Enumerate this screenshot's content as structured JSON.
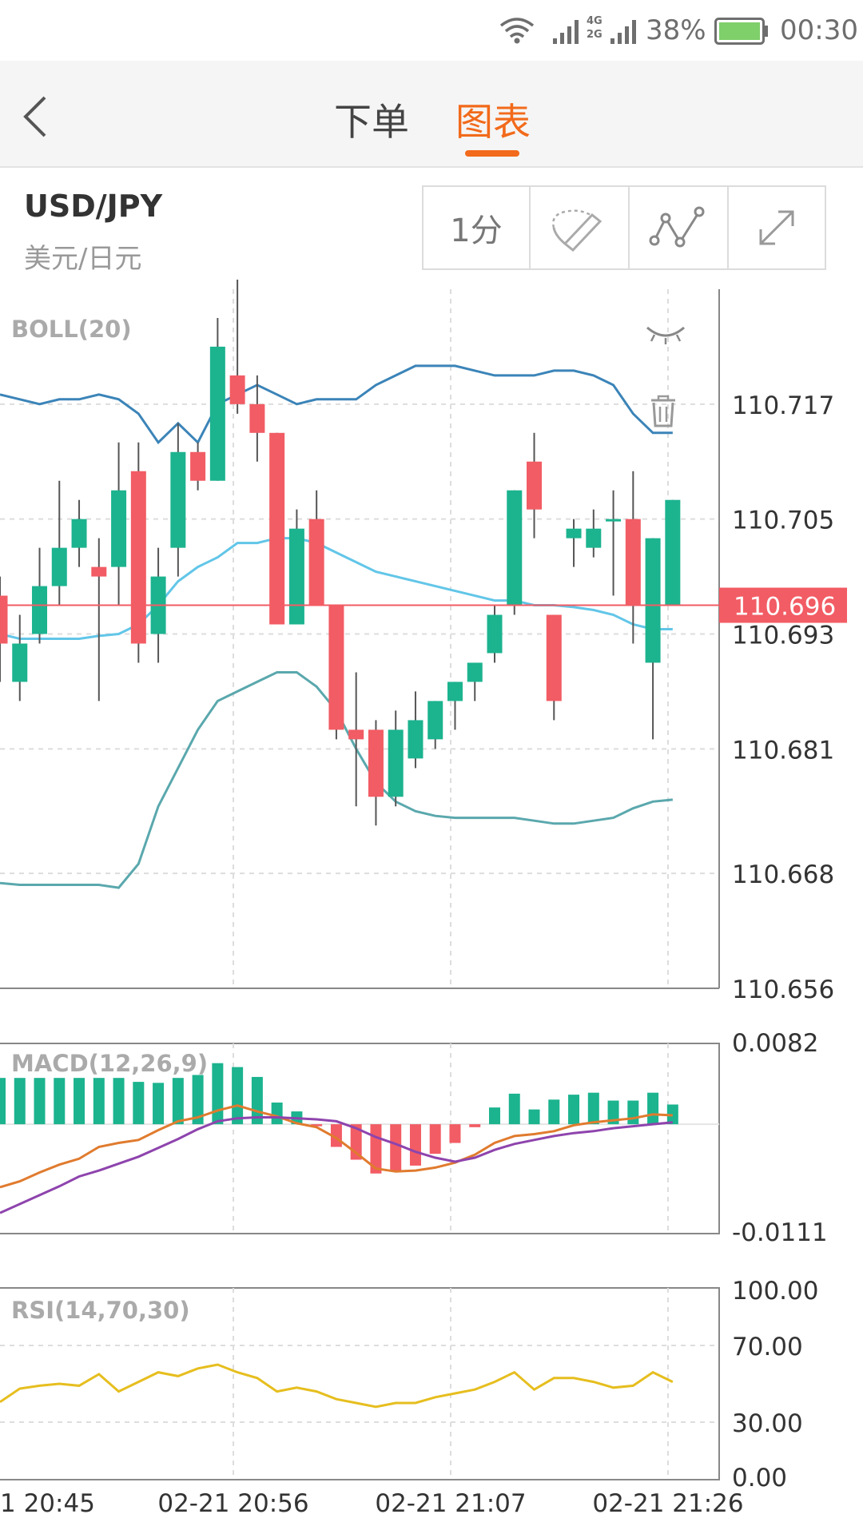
{
  "status_bar": {
    "network": "4G 2G",
    "battery": "38%",
    "time": "00:30"
  },
  "nav": {
    "tabs": [
      {
        "label": "下单",
        "active": false
      },
      {
        "label": "图表",
        "active": true
      }
    ]
  },
  "symbol": {
    "code": "USD/JPY",
    "name": "美元/日元"
  },
  "toolbar": {
    "interval_label": "1分",
    "icons": [
      "draw-pen-icon",
      "line-tool-icon",
      "fullscreen-expand-icon"
    ]
  },
  "colors": {
    "up": "#1cb38f",
    "down": "#f25c64",
    "accent": "#f26a1b",
    "boll_upper": "#3b84b8",
    "boll_mid": "#62c6e8",
    "boll_lower": "#5aa8ad",
    "macd_dif": "#e07b2e",
    "macd_dea": "#8e44ad",
    "rsi": "#e6be1e"
  },
  "chart_data": {
    "type": "candlestick",
    "symbol": "USD/JPY",
    "current_price": "110.696",
    "main": {
      "label": "BOLL(20)",
      "y_ticks": [
        "110.717",
        "110.705",
        "110.693",
        "110.681",
        "110.668",
        "110.656"
      ],
      "ylim": [
        110.656,
        110.729
      ],
      "candles": [
        [
          110.697,
          110.692,
          110.699,
          110.688
        ],
        [
          110.688,
          110.692,
          110.695,
          110.686
        ],
        [
          110.693,
          110.698,
          110.702,
          110.692
        ],
        [
          110.698,
          110.702,
          110.709,
          110.696
        ],
        [
          110.702,
          110.705,
          110.707,
          110.7
        ],
        [
          110.7,
          110.699,
          110.703,
          110.686
        ],
        [
          110.7,
          110.708,
          110.713,
          110.696
        ],
        [
          110.71,
          110.692,
          110.713,
          110.69
        ],
        [
          110.693,
          110.699,
          110.702,
          110.69
        ],
        [
          110.702,
          110.712,
          110.715,
          110.699
        ],
        [
          110.712,
          110.709,
          110.713,
          110.708
        ],
        [
          110.709,
          110.723,
          110.726,
          110.709
        ],
        [
          110.72,
          110.717,
          110.73,
          110.716
        ],
        [
          110.717,
          110.714,
          110.72,
          110.711
        ],
        [
          110.714,
          110.694,
          110.714,
          110.694
        ],
        [
          110.694,
          110.704,
          110.706,
          110.694
        ],
        [
          110.705,
          110.696,
          110.708,
          110.696
        ],
        [
          110.696,
          110.683,
          110.696,
          110.682
        ],
        [
          110.683,
          110.682,
          110.689,
          110.675
        ],
        [
          110.683,
          110.676,
          110.684,
          110.673
        ],
        [
          110.676,
          110.683,
          110.685,
          110.675
        ],
        [
          110.68,
          110.684,
          110.687,
          110.679
        ],
        [
          110.682,
          110.686,
          110.686,
          110.681
        ],
        [
          110.686,
          110.688,
          110.688,
          110.683
        ],
        [
          110.688,
          110.69,
          110.69,
          110.686
        ],
        [
          110.691,
          110.695,
          110.696,
          110.69
        ],
        [
          110.696,
          110.708,
          110.708,
          110.695
        ],
        [
          110.711,
          110.706,
          110.714,
          110.703
        ],
        [
          110.695,
          110.686,
          110.695,
          110.684
        ],
        [
          110.703,
          110.704,
          110.705,
          110.7
        ],
        [
          110.702,
          110.704,
          110.706,
          110.701
        ],
        [
          110.705,
          110.705,
          110.708,
          110.697
        ],
        [
          110.705,
          110.696,
          110.71,
          110.692
        ],
        [
          110.69,
          110.703,
          110.703,
          110.682
        ],
        [
          110.696,
          110.707,
          110.707,
          110.696
        ]
      ],
      "candle_format": [
        "open",
        "close",
        "high",
        "low"
      ],
      "boll_upper": [
        110.718,
        110.7175,
        110.717,
        110.7175,
        110.7175,
        110.718,
        110.7175,
        110.716,
        110.713,
        110.715,
        110.713,
        110.717,
        110.718,
        110.719,
        110.718,
        110.717,
        110.7175,
        110.7175,
        110.7175,
        110.719,
        110.72,
        110.721,
        110.721,
        110.721,
        110.7205,
        110.72,
        110.72,
        110.72,
        110.7205,
        110.7205,
        110.72,
        110.719,
        110.716,
        110.714,
        110.714
      ],
      "boll_mid": [
        110.693,
        110.6925,
        110.6925,
        110.6925,
        110.6925,
        110.6928,
        110.693,
        110.694,
        110.696,
        110.6985,
        110.7,
        110.701,
        110.7025,
        110.7025,
        110.703,
        110.703,
        110.7025,
        110.7015,
        110.7005,
        110.6995,
        110.699,
        110.6985,
        110.698,
        110.6975,
        110.697,
        110.6965,
        110.6965,
        110.696,
        110.696,
        110.6958,
        110.6955,
        110.695,
        110.694,
        110.6935,
        110.6935
      ],
      "boll_lower": [
        110.667,
        110.6668,
        110.6668,
        110.6668,
        110.6668,
        110.6668,
        110.6665,
        110.669,
        110.675,
        110.679,
        110.683,
        110.686,
        110.687,
        110.688,
        110.689,
        110.689,
        110.6875,
        110.685,
        110.681,
        110.6775,
        110.6755,
        110.6745,
        110.674,
        110.6738,
        110.6738,
        110.6738,
        110.6738,
        110.6735,
        110.6732,
        110.6732,
        110.6735,
        110.6738,
        110.6748,
        110.6755,
        110.6757
      ]
    },
    "macd": {
      "label": "MACD(12,26,9)",
      "y_ticks": [
        "0.0082",
        "-0.0111"
      ],
      "ylim": [
        -0.0111,
        0.0082
      ],
      "hist": [
        0.0047,
        0.0047,
        0.0047,
        0.0047,
        0.0047,
        0.0047,
        0.0047,
        0.0043,
        0.0042,
        0.0047,
        0.005,
        0.0062,
        0.0058,
        0.0048,
        0.0022,
        0.0013,
        -0.0002,
        -0.0023,
        -0.0036,
        -0.005,
        -0.0048,
        -0.0042,
        -0.003,
        -0.0019,
        -0.0003,
        0.0017,
        0.0031,
        0.0015,
        0.0025,
        0.003,
        0.0032,
        0.0024,
        0.0024,
        0.0032,
        0.002
      ],
      "dif": [
        -0.0064,
        -0.0058,
        -0.0049,
        -0.0041,
        -0.0035,
        -0.0023,
        -0.0019,
        -0.0016,
        -0.0006,
        0.0003,
        0.0007,
        0.0014,
        0.0019,
        0.0013,
        0.0008,
        0.0001,
        -0.0003,
        -0.0014,
        -0.0029,
        -0.0045,
        -0.0048,
        -0.0047,
        -0.0044,
        -0.0039,
        -0.0031,
        -0.0019,
        -0.0012,
        -0.001,
        -0.0007,
        -0.0001,
        0.0002,
        0.0004,
        0.0006,
        0.001,
        0.0009
      ],
      "dea": [
        -0.009,
        -0.0081,
        -0.0072,
        -0.0063,
        -0.0053,
        -0.0047,
        -0.004,
        -0.0033,
        -0.0024,
        -0.0015,
        -0.0005,
        0.0003,
        0.0006,
        0.0007,
        0.0007,
        0.0006,
        0.0005,
        0.0003,
        -0.0004,
        -0.0013,
        -0.002,
        -0.0028,
        -0.0034,
        -0.0038,
        -0.0034,
        -0.0026,
        -0.002,
        -0.0016,
        -0.0012,
        -0.0009,
        -0.0007,
        -0.0004,
        -0.0002,
        0.0,
        0.0002
      ]
    },
    "rsi": {
      "label": "RSI(14,70,30)",
      "y_ticks": [
        "100.00",
        "70.00",
        "30.00",
        "0.00"
      ],
      "ylim": [
        0,
        100
      ],
      "values": [
        40.5,
        47.5,
        49,
        50,
        49,
        55,
        46,
        51,
        56,
        54,
        58,
        60,
        56,
        53,
        46,
        48,
        46,
        42,
        40,
        38,
        40,
        40,
        43,
        45,
        47,
        51,
        56,
        47,
        53,
        53,
        51,
        48,
        49,
        56,
        51
      ]
    },
    "x_labels": [
      "1 20:45",
      "02-21 20:56",
      "02-21 21:07",
      "02-21 21:26"
    ]
  }
}
